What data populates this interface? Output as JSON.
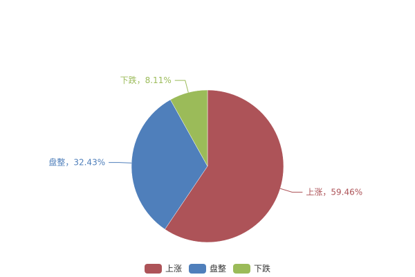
{
  "chart_data": {
    "type": "pie",
    "start": "top",
    "direction": "clockwise",
    "label_format": "{name}，{percent}%",
    "slices": [
      {
        "name": "上涨",
        "value": 59.46,
        "color": "#ad5358"
      },
      {
        "name": "盘整",
        "value": 32.43,
        "color": "#4f7fbb"
      },
      {
        "name": "下跌",
        "value": 8.11,
        "color": "#9bbb59"
      }
    ],
    "legend": {
      "placement": "bottom",
      "items": [
        "上涨",
        "盘整",
        "下跌"
      ]
    }
  }
}
